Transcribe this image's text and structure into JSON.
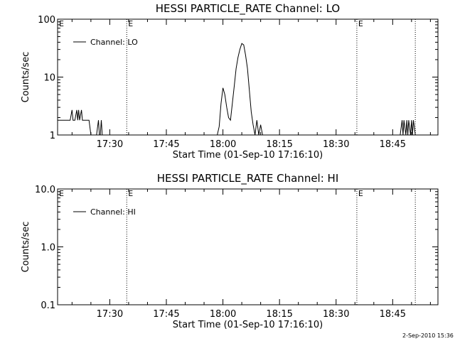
{
  "chart_data": [
    {
      "type": "line",
      "title": "HESSI PARTICLE_RATE Channel: LO",
      "xlabel": "Start Time (01-Sep-10 17:16:10)",
      "ylabel": "Counts/sec",
      "y_scale": "log",
      "ylim": [
        1,
        100
      ],
      "xlim": [
        "17:16:10",
        "18:57:00"
      ],
      "x_ticks": [
        "17:30",
        "17:45",
        "18:00",
        "18:15",
        "18:30",
        "18:45"
      ],
      "y_ticks": [
        "1",
        "10",
        "100"
      ],
      "legend": {
        "placement": "top-left",
        "entries": [
          "Channel: LO"
        ]
      },
      "markers": [
        {
          "time": "17:34:30",
          "label": "E"
        },
        {
          "time": "18:35:30",
          "label": "E"
        },
        {
          "time": "18:51:00",
          "label": ""
        }
      ],
      "series": [
        {
          "name": "Channel: LO",
          "x": [
            "17:16:10",
            "17:17:30",
            "17:18:30",
            "17:19:30",
            "17:20:00",
            "17:20:15",
            "17:20:30",
            "17:20:45",
            "17:21:15",
            "17:21:30",
            "17:21:45",
            "17:22:00",
            "17:22:30",
            "17:22:45",
            "17:23:00",
            "17:23:15",
            "17:23:30",
            "17:24:00",
            "17:24:30",
            "17:25:00",
            "17:26:30",
            "17:27:00",
            "17:27:15",
            "17:27:30",
            "17:27:45",
            "17:28:00",
            "17:28:30",
            "17:58:30",
            "17:59:00",
            "17:59:30",
            "18:00:00",
            "18:00:30",
            "18:01:00",
            "18:01:30",
            "18:02:00",
            "18:02:30",
            "18:03:00",
            "18:03:30",
            "18:04:00",
            "18:04:30",
            "18:05:00",
            "18:05:30",
            "18:06:00",
            "18:06:30",
            "18:07:00",
            "18:07:30",
            "18:08:00",
            "18:08:30",
            "18:09:00",
            "18:09:30",
            "18:10:00",
            "18:10:30",
            "18:11:00",
            "18:11:30",
            "18:12:00",
            "18:12:30",
            "18:47:00",
            "18:47:30",
            "18:47:45",
            "18:48:00",
            "18:48:30",
            "18:48:45",
            "18:49:00",
            "18:49:15",
            "18:49:45",
            "18:50:00",
            "18:50:15",
            "18:50:30",
            "18:51:00"
          ],
          "y": [
            1.8,
            1.8,
            1.8,
            1.8,
            2.7,
            1.8,
            1.8,
            1.8,
            2.7,
            1.8,
            2.7,
            1.8,
            2.7,
            1.8,
            1.8,
            1.8,
            1.8,
            1.8,
            1.8,
            1.0,
            1.0,
            1.8,
            1.0,
            1.0,
            1.8,
            1.0,
            1.0,
            1.0,
            1.4,
            3.5,
            6.5,
            5.0,
            3.0,
            2.0,
            1.8,
            3.5,
            7.0,
            14,
            22,
            30,
            38,
            36,
            24,
            14,
            6,
            2.5,
            1.5,
            1.0,
            1.8,
            1.0,
            1.5,
            1.0,
            1.0,
            1.0,
            1.0,
            1.0,
            1.0,
            1.8,
            1.0,
            1.8,
            1.0,
            1.8,
            1.0,
            1.8,
            1.0,
            1.8,
            1.0,
            1.8,
            1.0
          ]
        }
      ]
    },
    {
      "type": "line",
      "title": "HESSI PARTICLE_RATE Channel: HI",
      "xlabel": "Start Time (01-Sep-10 17:16:10)",
      "ylabel": "Counts/sec",
      "y_scale": "log",
      "ylim": [
        0.1,
        10.0
      ],
      "xlim": [
        "17:16:10",
        "18:57:00"
      ],
      "x_ticks": [
        "17:30",
        "17:45",
        "18:00",
        "18:15",
        "18:30",
        "18:45"
      ],
      "y_ticks": [
        "0.1",
        "1.0",
        "10.0"
      ],
      "legend": {
        "placement": "top-left",
        "entries": [
          "Channel: HI"
        ]
      },
      "markers": [
        {
          "time": "17:34:30",
          "label": "E"
        },
        {
          "time": "18:35:30",
          "label": "E"
        },
        {
          "time": "18:51:00",
          "label": ""
        }
      ],
      "series": [
        {
          "name": "Channel: HI",
          "x": [],
          "y": []
        }
      ]
    }
  ],
  "footer": {
    "timestamp": "2-Sep-2010 15:36"
  }
}
